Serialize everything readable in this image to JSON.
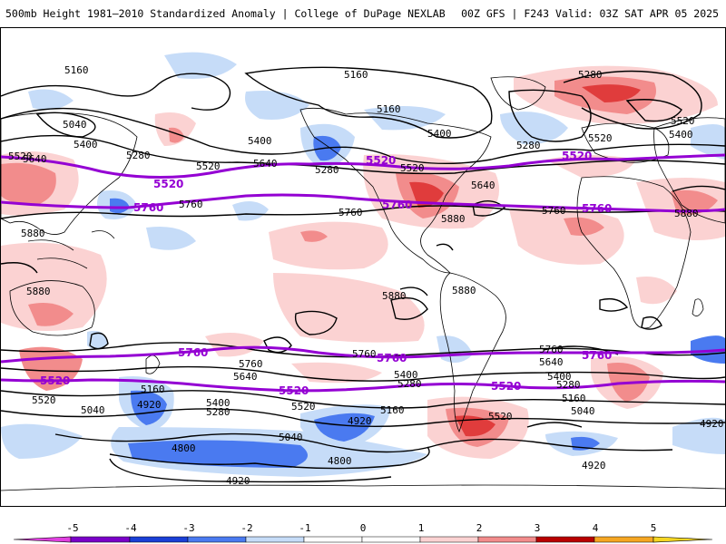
{
  "header": {
    "title": "500mb Height 1981–2010 Standardized Anomaly | College of DuPage NEXLAB",
    "run_info": "00Z GFS | F243 Valid: 03Z SAT APR 05 2025"
  },
  "colors": {
    "contour": "#000000",
    "highlight_contour": "#9400d3",
    "neg5": "#e040e0",
    "neg4": "#7a00c8",
    "neg3": "#1a3fd6",
    "neg2": "#4a7af0",
    "neg1": "#c6dcf8",
    "neutral": "#ffffff",
    "pos1": "#fbd2d2",
    "pos2": "#f28c8c",
    "pos3": "#e03c3c",
    "pos4": "#b80000",
    "pos5": "#f5a623"
  },
  "map": {
    "contour_labels": [
      "5160",
      "5040",
      "5400",
      "5520",
      "5760",
      "5280",
      "5640",
      "5880",
      "4920",
      "4800"
    ],
    "highlight_labels": [
      "5520",
      "5760"
    ]
  },
  "colorbar": {
    "ticks": [
      "-5",
      "-4",
      "-3",
      "-2",
      "-1",
      "0",
      "1",
      "2",
      "3",
      "4",
      "5"
    ]
  }
}
